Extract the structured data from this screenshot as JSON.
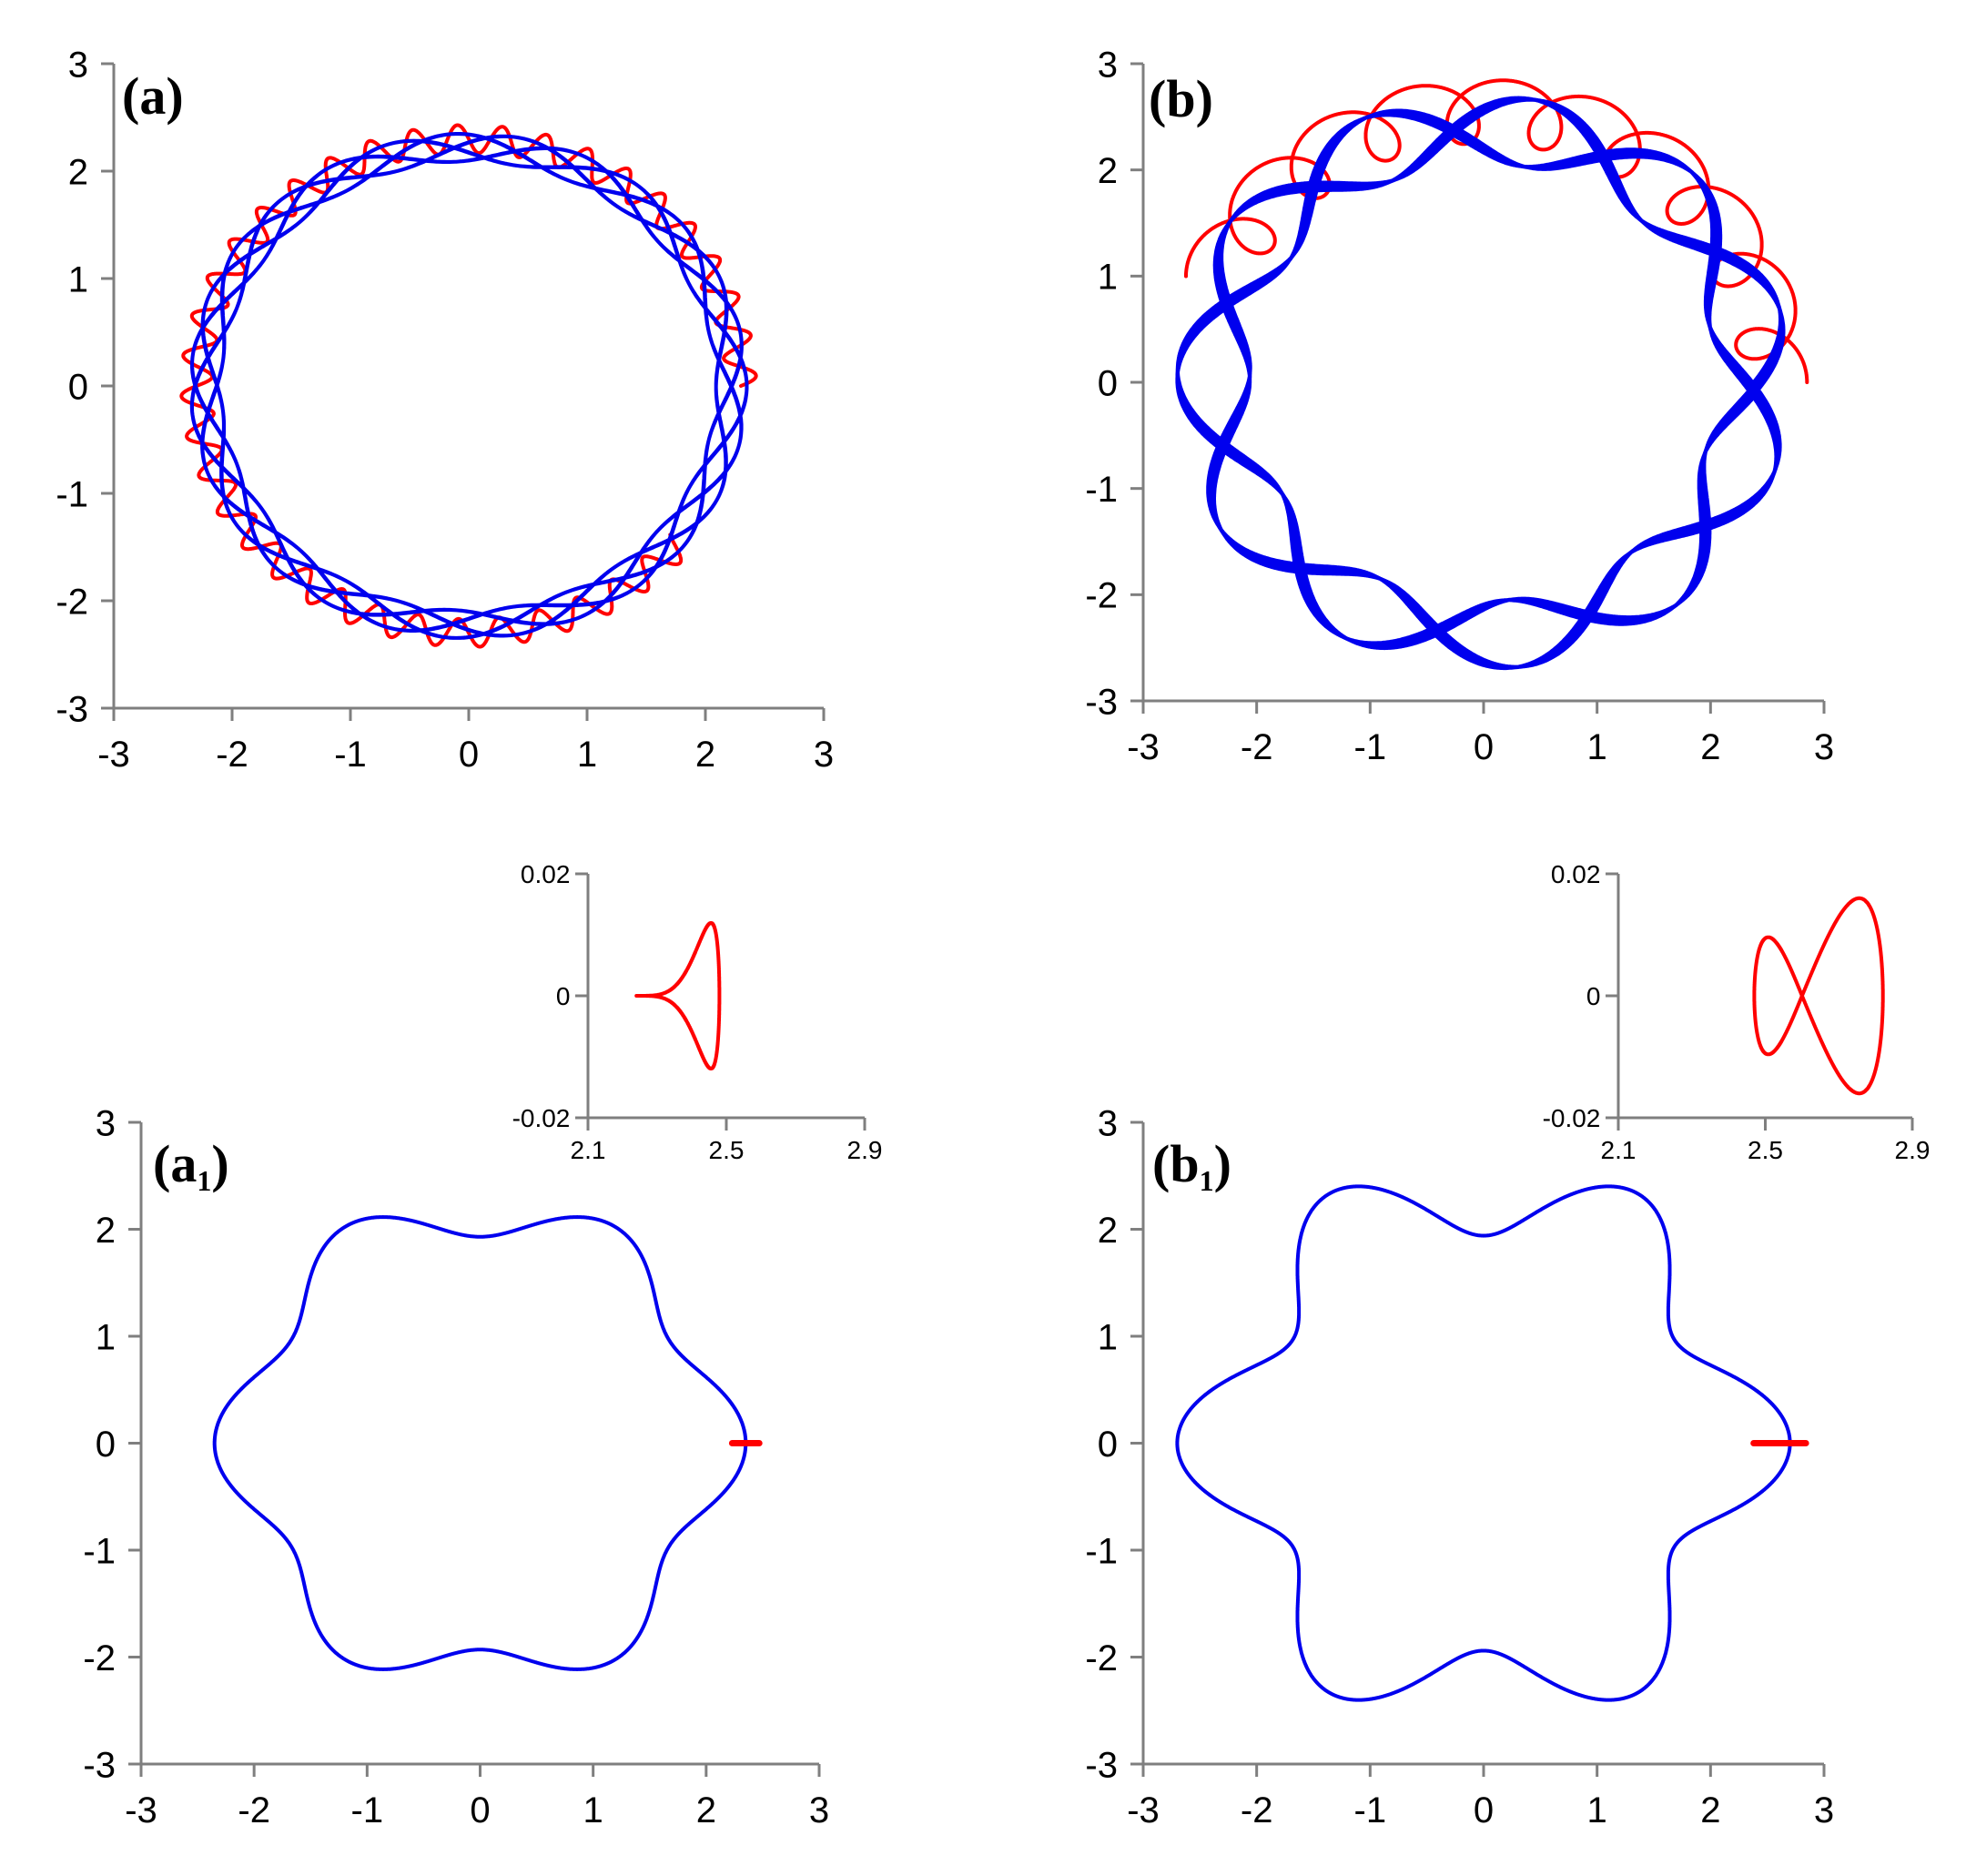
{
  "chart_data": [
    {
      "id": "a",
      "type": "line",
      "panel_label": "(a)",
      "xlim": [
        -3,
        3
      ],
      "ylim": [
        -3,
        3
      ],
      "x_ticks": [
        "-3",
        "-2",
        "-1",
        "0",
        "1",
        "2",
        "3"
      ],
      "y_ticks": [
        "3",
        "2",
        "1",
        "0",
        "-1",
        "-2",
        "-3"
      ],
      "series": [
        {
          "color": "#ff0000",
          "kind": "wobble",
          "R": 2.3,
          "A": 0.13,
          "k": 40,
          "t0": 0.0,
          "t1": 5.6
        },
        {
          "color": "#0000ee",
          "kind": "rosette",
          "R": 2.22,
          "A": 0.13,
          "m": 7,
          "p": 0.037,
          "turns": 27
        }
      ]
    },
    {
      "id": "b",
      "type": "line",
      "panel_label": "(b)",
      "xlim": [
        -3,
        3
      ],
      "ylim": [
        -3,
        3
      ],
      "x_ticks": [
        "-3",
        "-2",
        "-1",
        "0",
        "1",
        "2",
        "3"
      ],
      "y_ticks": [
        "3",
        "2",
        "1",
        "0",
        "-1",
        "-2",
        "-3"
      ],
      "series": [
        {
          "color": "#ff0000",
          "kind": "loops",
          "R": 2.55,
          "A": 0.3,
          "k": 22,
          "t0": 0.0,
          "t1": 2.72
        },
        {
          "color": "#0000ee",
          "kind": "rosette",
          "R": 2.38,
          "A": 0.32,
          "m": 6,
          "p": 0.09,
          "turns": 11
        }
      ]
    },
    {
      "id": "a1",
      "type": "line",
      "panel_label_main": "(a",
      "panel_label_sub": "1",
      "panel_label_close": ")",
      "xlim": [
        -3,
        3
      ],
      "ylim": [
        -3,
        3
      ],
      "x_ticks": [
        "-3",
        "-2",
        "-1",
        "0",
        "1",
        "2",
        "3"
      ],
      "y_ticks": [
        "3",
        "2",
        "1",
        "0",
        "-1",
        "-2",
        "-3"
      ],
      "series": [
        {
          "color": "#0000ee",
          "kind": "hexagon",
          "R": 2.14,
          "A": 0.21
        },
        {
          "color": "#ff0000",
          "kind": "dash",
          "x0": 2.23,
          "x1": 2.47
        }
      ],
      "inset": {
        "xlim": [
          2.1,
          2.9
        ],
        "ylim": [
          -0.02,
          0.02
        ],
        "x_ticks": [
          "2.1",
          "2.5",
          "2.9"
        ],
        "y_ticks": [
          "0.02",
          "0",
          "-0.02"
        ],
        "series": [
          {
            "color": "#ff0000",
            "kind": "teardrop",
            "x0": 2.24,
            "x1": 2.48,
            "ymax": 0.017
          }
        ]
      }
    },
    {
      "id": "b1",
      "type": "line",
      "panel_label_main": "(b",
      "panel_label_sub": "1",
      "panel_label_close": ")",
      "xlim": [
        -3,
        3
      ],
      "ylim": [
        -3,
        3
      ],
      "x_ticks": [
        "-3",
        "-2",
        "-1",
        "0",
        "1",
        "2",
        "3"
      ],
      "y_ticks": [
        "3",
        "2",
        "1",
        "0",
        "-1",
        "-2",
        "-3"
      ],
      "series": [
        {
          "color": "#0000ee",
          "kind": "hexagon",
          "R": 2.32,
          "A": 0.38
        },
        {
          "color": "#ff0000",
          "kind": "dash",
          "x0": 2.38,
          "x1": 2.84
        }
      ],
      "inset": {
        "xlim": [
          2.1,
          2.9
        ],
        "ylim": [
          -0.02,
          0.02
        ],
        "x_ticks": [
          "2.1",
          "2.5",
          "2.9"
        ],
        "y_ticks": [
          "0.02",
          "0",
          "-0.02"
        ],
        "series": [
          {
            "color": "#ff0000",
            "kind": "figure8",
            "cx": 2.6,
            "ax": 0.22,
            "ay": 0.016,
            "skew": 0.6
          }
        ]
      }
    }
  ]
}
